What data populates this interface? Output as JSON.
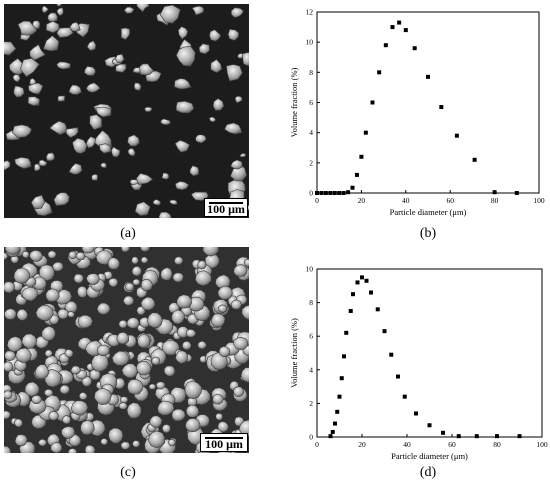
{
  "panels": {
    "a": {
      "caption": "(a)",
      "scale_label": "100 μm"
    },
    "b": {
      "caption": "(b)"
    },
    "c": {
      "caption": "(c)",
      "scale_label": "100 μm"
    },
    "d": {
      "caption": "(d)"
    }
  },
  "chart_data": [
    {
      "panel": "(b)",
      "type": "scatter",
      "xlabel": "Particle diameter (μm)",
      "ylabel": "Volume fraction (%)",
      "xlim": [
        0,
        100
      ],
      "ylim": [
        0,
        12
      ],
      "xticks": [
        0,
        20,
        40,
        60,
        80,
        100
      ],
      "yticks": [
        0,
        2,
        4,
        6,
        8,
        10,
        12
      ],
      "series": [
        {
          "x": [
            0,
            2,
            4,
            6,
            8,
            10,
            12,
            14,
            16,
            18,
            20,
            22,
            25,
            28,
            31,
            34,
            37,
            40,
            44,
            50,
            56,
            63,
            71,
            80,
            90
          ],
          "y": [
            0,
            0,
            0,
            0,
            0,
            0,
            0,
            0.05,
            0.35,
            1.2,
            2.4,
            4.0,
            6.0,
            8.0,
            9.8,
            11.0,
            11.3,
            10.8,
            9.6,
            7.7,
            5.7,
            3.8,
            2.2,
            0.05,
            0
          ]
        }
      ]
    },
    {
      "panel": "(d)",
      "type": "scatter",
      "xlabel": "Particle diameter (μm)",
      "ylabel": "Volume fraction (%)",
      "xlim": [
        0,
        100
      ],
      "ylim": [
        0,
        10
      ],
      "xticks": [
        0,
        20,
        40,
        60,
        80,
        100
      ],
      "yticks": [
        0,
        2,
        4,
        6,
        8,
        10
      ],
      "series": [
        {
          "x": [
            6,
            7,
            8,
            9,
            10,
            11,
            12,
            13,
            15,
            16,
            18,
            20,
            22,
            24,
            27,
            30,
            33,
            36,
            39,
            44,
            50,
            56,
            63,
            71,
            80,
            90
          ],
          "y": [
            0.05,
            0.3,
            0.8,
            1.5,
            2.4,
            3.5,
            4.8,
            6.2,
            7.5,
            8.5,
            9.2,
            9.5,
            9.3,
            8.6,
            7.6,
            6.3,
            4.9,
            3.6,
            2.4,
            1.4,
            0.7,
            0.25,
            0.05,
            0.05,
            0.05,
            0.05
          ]
        }
      ]
    }
  ]
}
